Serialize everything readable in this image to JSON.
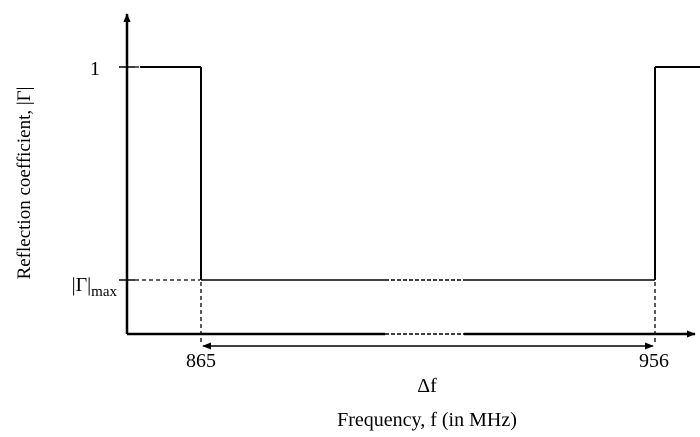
{
  "chart_data": {
    "type": "line",
    "title": "",
    "xlabel": "Frequency, f (in MHz)",
    "ylabel": "Reflection coefficient, |Γ|",
    "x_ticks": [
      "865",
      "956"
    ],
    "y_ticks": [
      "1",
      "|Γ|"
    ],
    "y_tick_subscript": "max",
    "bandwidth_label": "Δf",
    "grid": false,
    "series": [
      {
        "points": [
          {
            "x": "0",
            "y": "1"
          },
          {
            "x": "865",
            "y": "1"
          },
          {
            "x": "865",
            "y": "|Γ|max"
          },
          {
            "x": "956",
            "y": "|Γ|max"
          },
          {
            "x": "956",
            "y": "1"
          }
        ]
      }
    ]
  }
}
